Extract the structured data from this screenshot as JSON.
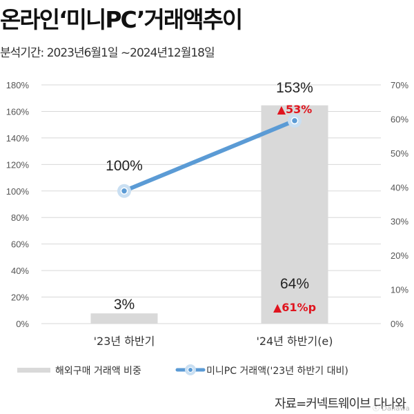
{
  "header": {
    "title": "온라인‘미니PC’거래액추이",
    "subtitle": "분석기간: 2023년6월1일 ~2024년12월18일"
  },
  "source": "자료=커넥트웨이브 다나와",
  "watermark": "ⓒ Danawa",
  "colors": {
    "bar": "#d9d9d9",
    "line": "#5b9bd5",
    "marker": "#c9dff2",
    "change": "#e0141e",
    "grid": "#d7d7d7"
  },
  "chart_data": {
    "type": "bar+line",
    "categories": [
      "'23년 하반기",
      "'24년 하반기(e)"
    ],
    "y_left": {
      "ylim": [
        0,
        180
      ],
      "ticks": [
        "0%",
        "20%",
        "40%",
        "60%",
        "80%",
        "100%",
        "120%",
        "140%",
        "160%",
        "180%"
      ]
    },
    "y_right": {
      "ylim": [
        0,
        70
      ],
      "ticks": [
        "0%",
        "10%",
        "20%",
        "30%",
        "40%",
        "50%",
        "60%",
        "70%"
      ]
    },
    "grid": true,
    "legend_position": "bottom",
    "series": [
      {
        "name": "해외구매 거래액 비중",
        "type": "bar",
        "axis": "right",
        "values": [
          3,
          64
        ],
        "labels": [
          "3%",
          "64%"
        ],
        "change_labels": [
          "",
          "▲61%p"
        ]
      },
      {
        "name": "미니PC 거래액('23년 하반기 대비)",
        "type": "line",
        "axis": "left",
        "values": [
          100,
          153
        ],
        "labels": [
          "100%",
          "153%"
        ],
        "change_labels": [
          "",
          "▲53%"
        ]
      }
    ]
  }
}
